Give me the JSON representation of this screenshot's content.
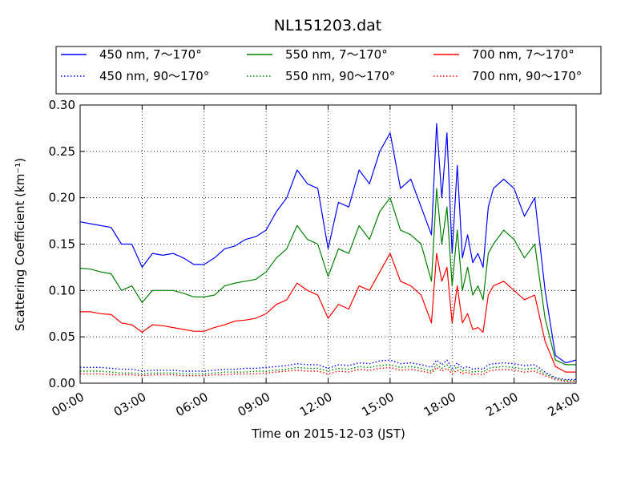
{
  "chart_data": {
    "type": "line",
    "title": "NL151203.dat",
    "xlabel": "Time on 2015-12-03 (JST)",
    "ylabel": "Scattering Coefficient (km⁻¹)",
    "xlim": [
      "00:00",
      "24:00"
    ],
    "ylim": [
      0,
      0.3
    ],
    "grid": true,
    "legend_position": "top, above plot, 3 columns",
    "x_ticks": [
      "00:00",
      "03:00",
      "06:00",
      "09:00",
      "12:00",
      "15:00",
      "18:00",
      "21:00",
      "24:00"
    ],
    "y_ticks": [
      "0.00",
      "0.05",
      "0.10",
      "0.15",
      "0.20",
      "0.25",
      "0.30"
    ],
    "x_hours": [
      0,
      0.5,
      1,
      1.5,
      2,
      2.5,
      3,
      3.5,
      4,
      4.5,
      5,
      5.5,
      6,
      6.5,
      7,
      7.5,
      8,
      8.5,
      9,
      9.5,
      10,
      10.5,
      11,
      11.5,
      12,
      12.5,
      13,
      13.5,
      14,
      14.5,
      15,
      15.5,
      16,
      16.5,
      17,
      17.25,
      17.5,
      17.75,
      18,
      18.25,
      18.5,
      18.75,
      19,
      19.25,
      19.5,
      19.75,
      20,
      20.5,
      21,
      21.5,
      22,
      22.5,
      23,
      23.5,
      24
    ],
    "series": [
      {
        "name": "450 nm, 7～170°",
        "color": "#0000ff",
        "style": "solid",
        "values": [
          0.174,
          0.172,
          0.17,
          0.168,
          0.15,
          0.15,
          0.125,
          0.14,
          0.138,
          0.14,
          0.135,
          0.128,
          0.128,
          0.135,
          0.145,
          0.148,
          0.155,
          0.158,
          0.165,
          0.185,
          0.2,
          0.23,
          0.215,
          0.21,
          0.145,
          0.195,
          0.19,
          0.23,
          0.215,
          0.25,
          0.27,
          0.21,
          0.22,
          0.19,
          0.16,
          0.28,
          0.2,
          0.27,
          0.14,
          0.235,
          0.135,
          0.16,
          0.13,
          0.14,
          0.125,
          0.19,
          0.21,
          0.22,
          0.21,
          0.18,
          0.2,
          0.1,
          0.03,
          0.022,
          0.025
        ]
      },
      {
        "name": "550 nm, 7～170°",
        "color": "#008000",
        "style": "solid",
        "values": [
          0.124,
          0.123,
          0.12,
          0.118,
          0.1,
          0.105,
          0.087,
          0.1,
          0.1,
          0.1,
          0.097,
          0.093,
          0.093,
          0.095,
          0.105,
          0.108,
          0.11,
          0.112,
          0.12,
          0.135,
          0.145,
          0.17,
          0.155,
          0.15,
          0.115,
          0.145,
          0.14,
          0.17,
          0.155,
          0.185,
          0.2,
          0.165,
          0.16,
          0.15,
          0.11,
          0.21,
          0.15,
          0.19,
          0.105,
          0.165,
          0.1,
          0.125,
          0.095,
          0.105,
          0.09,
          0.14,
          0.15,
          0.165,
          0.155,
          0.135,
          0.15,
          0.07,
          0.025,
          0.02,
          0.02
        ]
      },
      {
        "name": "700 nm, 7～170°",
        "color": "#ff0000",
        "style": "solid",
        "values": [
          0.077,
          0.077,
          0.075,
          0.074,
          0.065,
          0.063,
          0.055,
          0.063,
          0.062,
          0.06,
          0.058,
          0.056,
          0.056,
          0.06,
          0.063,
          0.067,
          0.068,
          0.07,
          0.075,
          0.085,
          0.09,
          0.108,
          0.1,
          0.095,
          0.07,
          0.085,
          0.08,
          0.105,
          0.1,
          0.12,
          0.14,
          0.11,
          0.105,
          0.095,
          0.065,
          0.14,
          0.11,
          0.125,
          0.065,
          0.105,
          0.065,
          0.075,
          0.058,
          0.06,
          0.055,
          0.095,
          0.105,
          0.11,
          0.1,
          0.09,
          0.095,
          0.045,
          0.018,
          0.012,
          0.012
        ]
      },
      {
        "name": "450 nm, 90～170°",
        "color": "#0000ff",
        "style": "dotted",
        "values": [
          0.017,
          0.017,
          0.017,
          0.016,
          0.015,
          0.015,
          0.013,
          0.014,
          0.014,
          0.014,
          0.013,
          0.013,
          0.013,
          0.014,
          0.015,
          0.015,
          0.016,
          0.016,
          0.017,
          0.018,
          0.019,
          0.021,
          0.02,
          0.02,
          0.016,
          0.02,
          0.019,
          0.022,
          0.021,
          0.024,
          0.025,
          0.021,
          0.022,
          0.02,
          0.017,
          0.025,
          0.02,
          0.025,
          0.016,
          0.022,
          0.016,
          0.018,
          0.015,
          0.016,
          0.015,
          0.02,
          0.021,
          0.022,
          0.021,
          0.019,
          0.02,
          0.012,
          0.006,
          0.004,
          0.004
        ]
      },
      {
        "name": "550 nm, 90～170°",
        "color": "#008000",
        "style": "dotted",
        "values": [
          0.013,
          0.013,
          0.013,
          0.012,
          0.011,
          0.011,
          0.01,
          0.011,
          0.011,
          0.011,
          0.01,
          0.01,
          0.01,
          0.011,
          0.012,
          0.012,
          0.012,
          0.013,
          0.013,
          0.014,
          0.015,
          0.017,
          0.016,
          0.016,
          0.013,
          0.016,
          0.015,
          0.018,
          0.017,
          0.019,
          0.02,
          0.017,
          0.018,
          0.016,
          0.013,
          0.02,
          0.016,
          0.02,
          0.013,
          0.018,
          0.013,
          0.014,
          0.012,
          0.013,
          0.012,
          0.016,
          0.017,
          0.018,
          0.017,
          0.015,
          0.016,
          0.01,
          0.005,
          0.003,
          0.003
        ]
      },
      {
        "name": "700 nm, 90～170°",
        "color": "#ff0000",
        "style": "dotted",
        "values": [
          0.01,
          0.01,
          0.01,
          0.009,
          0.009,
          0.009,
          0.008,
          0.009,
          0.009,
          0.009,
          0.008,
          0.008,
          0.008,
          0.009,
          0.009,
          0.01,
          0.01,
          0.01,
          0.011,
          0.012,
          0.013,
          0.014,
          0.013,
          0.013,
          0.01,
          0.013,
          0.012,
          0.015,
          0.014,
          0.016,
          0.017,
          0.014,
          0.015,
          0.013,
          0.011,
          0.017,
          0.013,
          0.016,
          0.01,
          0.014,
          0.01,
          0.012,
          0.009,
          0.01,
          0.009,
          0.013,
          0.014,
          0.015,
          0.014,
          0.012,
          0.013,
          0.008,
          0.004,
          0.002,
          0.002
        ]
      }
    ],
    "legend_order": [
      0,
      1,
      2,
      3,
      4,
      5
    ]
  }
}
